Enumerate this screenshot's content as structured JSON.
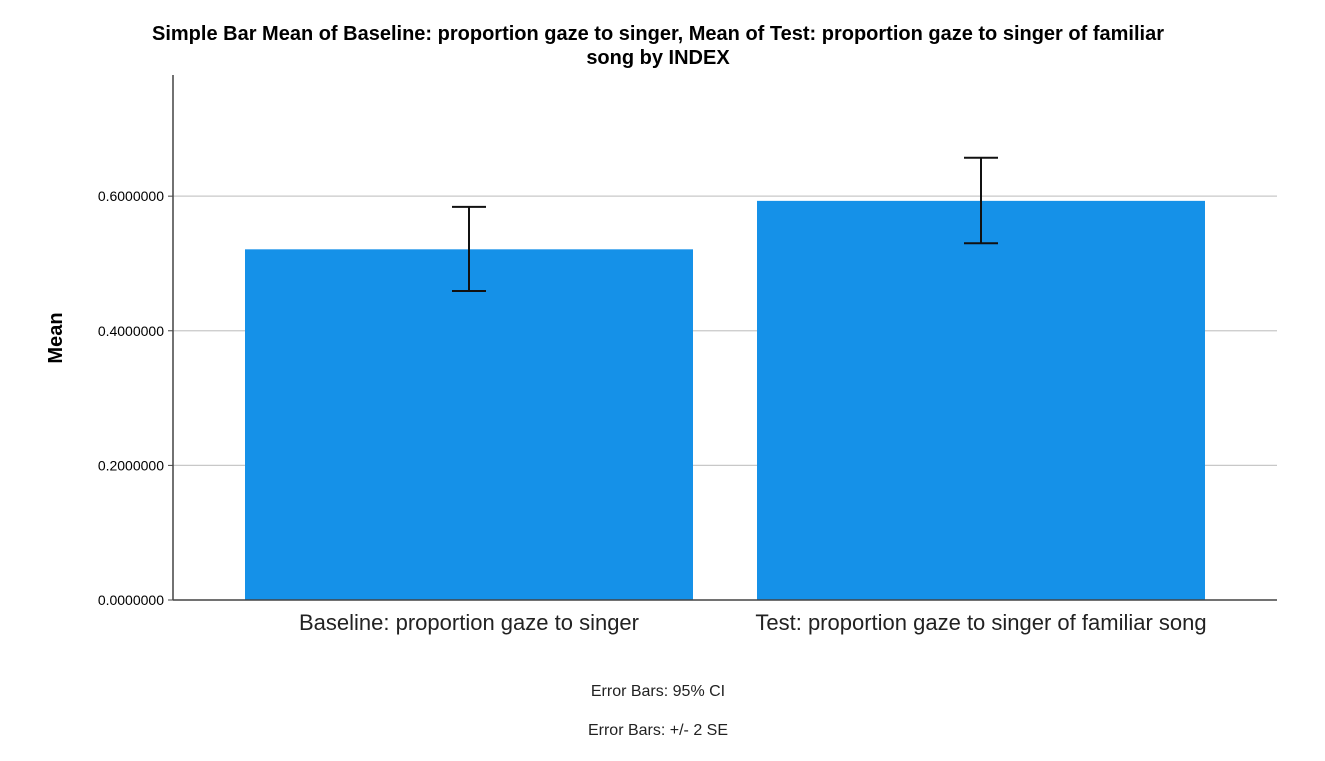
{
  "chart_data": {
    "type": "bar",
    "title": "Simple Bar Mean of Baseline: proportion gaze to singer, Mean of Test: proportion gaze to singer of familiar song by INDEX",
    "title_lines": [
      "Simple Bar Mean of Baseline: proportion gaze to singer, Mean of Test: proportion gaze to singer of familiar",
      "song by INDEX"
    ],
    "xlabel": "",
    "ylabel": "Mean",
    "categories": [
      "Baseline: proportion gaze to singer",
      "Test: proportion gaze to singer of familiar song"
    ],
    "values": [
      0.521,
      0.593
    ],
    "error_bars": [
      {
        "low": 0.459,
        "high": 0.584
      },
      {
        "low": 0.53,
        "high": 0.657
      }
    ],
    "yticks": [
      0,
      0.2,
      0.4,
      0.6
    ],
    "ytick_labels": [
      "0.0000000",
      "0.2000000",
      "0.4000000",
      "0.6000000"
    ],
    "ylim": [
      0,
      0.78
    ],
    "grid": true,
    "bar_color": "#1591e8",
    "notes": [
      "Error Bars: 95% CI",
      "Error Bars: +/- 2 SE"
    ]
  }
}
